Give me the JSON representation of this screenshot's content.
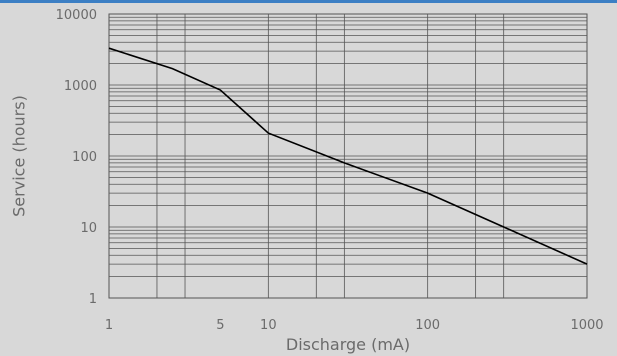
{
  "chart_data": {
    "type": "line",
    "title": "",
    "xlabel": "Discharge (mA)",
    "ylabel": "Service (hours)",
    "x_scale": "log",
    "y_scale": "log",
    "xlim": [
      1,
      1000
    ],
    "ylim": [
      1,
      10000
    ],
    "x_tick_labels": [
      {
        "value": 1,
        "label": "1"
      },
      {
        "value": 5,
        "label": "5"
      },
      {
        "value": 10,
        "label": "10"
      },
      {
        "value": 100,
        "label": "100"
      },
      {
        "value": 1000,
        "label": "1000"
      }
    ],
    "y_tick_labels": [
      {
        "value": 1,
        "label": "1"
      },
      {
        "value": 10,
        "label": "10"
      },
      {
        "value": 100,
        "label": "100"
      },
      {
        "value": 1000,
        "label": "1000"
      },
      {
        "value": 10000,
        "label": "10000"
      }
    ],
    "grid": true,
    "line_color": "#000000",
    "grid_color": "#555555",
    "series": [
      {
        "x": [
          1,
          2.5,
          5,
          10,
          30,
          100,
          300,
          1000
        ],
        "y": [
          3300,
          1700,
          850,
          210,
          80,
          30,
          10,
          3
        ]
      }
    ]
  }
}
